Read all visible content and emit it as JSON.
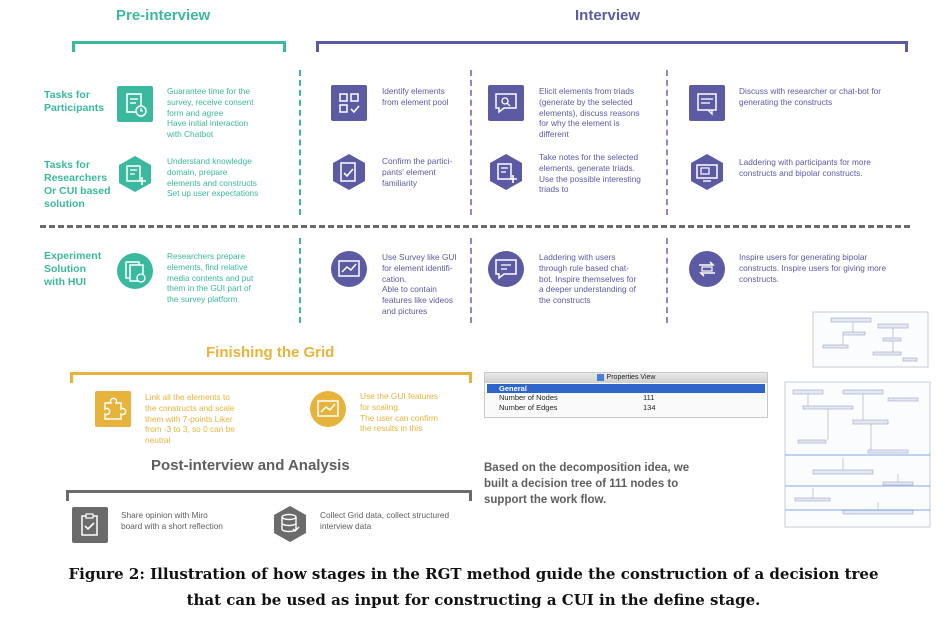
{
  "sections": {
    "pre_interview": "Pre-interview",
    "interview": "Interview",
    "finishing": "Finishing the Grid",
    "post": "Post-interview and Analysis"
  },
  "row_labels": {
    "participants": [
      "Tasks for",
      "Participants"
    ],
    "researchers": [
      "Tasks for",
      "Researchers",
      "Or CUI based",
      "solution"
    ],
    "experiment": [
      "Experiment",
      "Solution",
      "with HUI"
    ]
  },
  "pre": {
    "participants": [
      "Guarantee time for the",
      "survey, receive consent",
      "form and agree",
      "Have initial interaction",
      "with Chatbot"
    ],
    "researchers": [
      "Understand knowledge",
      "domain, prepare",
      "elements and constructs",
      "Set up user expectations"
    ],
    "experiment": [
      "Researchers prepare",
      "elements, find relative",
      "media contents and put",
      "them in the GUI part of",
      "the survey platform."
    ]
  },
  "interview": {
    "col1": {
      "participants": [
        "Identify elements",
        "from element pool"
      ],
      "researchers": [
        "Confirm the partici-",
        "pants' element",
        "familiarity"
      ],
      "experiment": [
        "Use Survey like GUI",
        "for element identifi-",
        "cation.",
        "Able to contain",
        "features like videos",
        "and pictures"
      ]
    },
    "col2": {
      "participants": [
        "Elicit elements from triads",
        "(generate by the selected",
        "elements), discuss reasons",
        "for why the element is",
        "different"
      ],
      "researchers": [
        "Take notes for the selected",
        "elements, generate triads.",
        "Use the possible interesting",
        "triads to"
      ],
      "experiment": [
        "Laddering  with users",
        "through rule based chat-",
        "bot. Inspire themselves for",
        "a deeper understanding of",
        "the constructs"
      ]
    },
    "col3": {
      "participants": [
        "Discuss with researcher or chat-bot for",
        "generating the constructs"
      ],
      "researchers": [
        "Laddering with participants for more",
        "constructs and bipolar constructs."
      ],
      "experiment": [
        "Inspire users for generating bipolar",
        "constructs. Inspire users for giving more",
        "constructs."
      ]
    }
  },
  "finishing": {
    "left": [
      "Link all the elements to",
      "the constructs and scale",
      "them with 7-points Liker",
      "from -3 to 3, so 0 can be",
      "neutral"
    ],
    "right": [
      "Use the GUI features",
      "for scaling.",
      "The user can confirm",
      "the results in this"
    ]
  },
  "post": {
    "left": [
      "Share opinion with Miro",
      "board with  a short reflection"
    ],
    "right": [
      "Collect Grid data, collect structured",
      "interview data"
    ]
  },
  "properties_view": {
    "title": "Properties View",
    "header": "General",
    "rows": [
      {
        "key": "Number of Nodes",
        "value": "111"
      },
      {
        "key": "Number of Edges",
        "value": "134"
      }
    ]
  },
  "tree_note": [
    "Based on the decomposition idea, we",
    "built a decision tree of 111 nodes to",
    "support the work flow."
  ],
  "caption": [
    "Figure 2: Illustration of how stages in the RGT method guide the construction of a decision tree",
    "that can be used as input for constructing a CUI in the define stage."
  ],
  "colors": {
    "teal": "#3bb99e",
    "purple": "#5c5aa2",
    "gold": "#e6b43c",
    "gray": "#6b6b6b"
  },
  "icons": {
    "pre_participants": "survey-clock-icon",
    "pre_researchers": "notes-add-icon",
    "pre_experiment": "media-files-icon",
    "int_identify": "grid-check-icon",
    "int_elicit": "chat-search-icon",
    "int_discuss": "chat-list-icon",
    "int_confirm": "checklist-icon",
    "int_notes": "notes-add-icon",
    "int_laddering": "monitor-ladder-icon",
    "int_survey_gui": "chart-line-icon",
    "int_chatbot": "chat-edit-icon",
    "int_inspire": "swap-arrows-icon",
    "fin_link": "puzzle-icon",
    "fin_scale": "chart-icon",
    "post_share": "clipboard-check-icon",
    "post_collect": "database-icon"
  }
}
